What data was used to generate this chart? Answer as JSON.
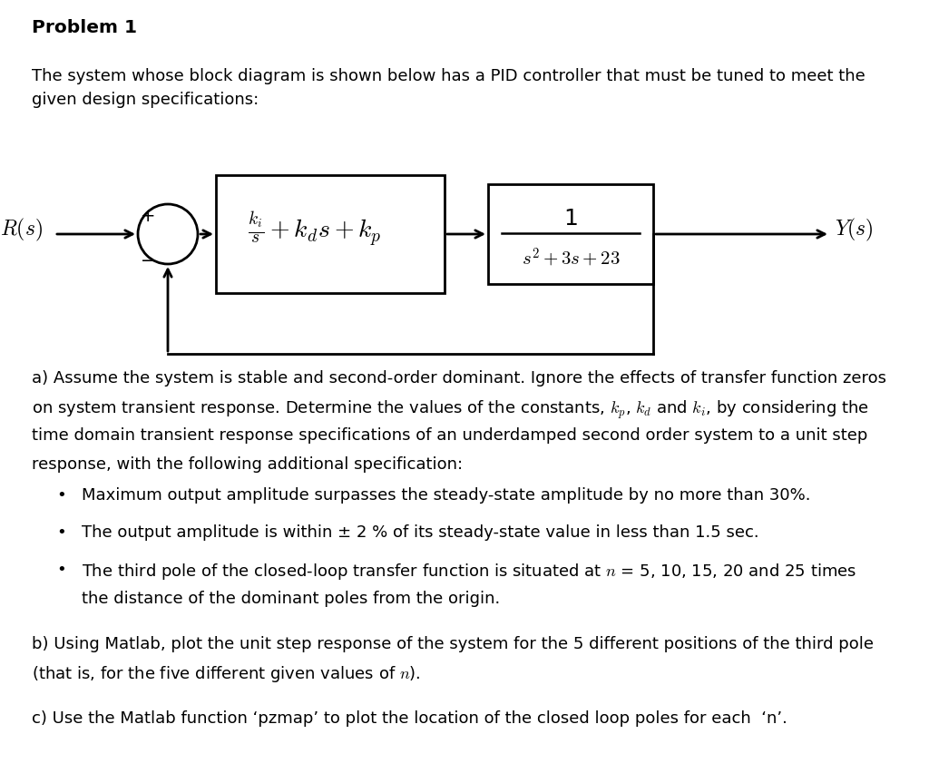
{
  "title": "Problem 1",
  "background_color": "#ffffff",
  "text_color": "#000000",
  "intro_text": "The system whose block diagram is shown below has a PID controller that must be tuned to meet the\ngiven design specifications:",
  "section_a_text_line1": "a) Assume the system is stable and second-order dominant. Ignore the effects of transfer function zeros",
  "section_a_text_line2": "on system transient response. Determine the values of the constants, $k_p$, $k_d$ and $k_i$, by considering the",
  "section_a_text_line3": "time domain transient response specifications of an underdamped second order system to a unit step",
  "section_a_text_line4": "response, with the following additional specification:",
  "bullet1": "Maximum output amplitude surpasses the steady-state amplitude by no more than 30%.",
  "bullet2": "The output amplitude is within ± 2 % of its steady-state value in less than 1.5 sec.",
  "bullet3_line1": "The third pole of the closed-loop transfer function is situated at $n$ = 5, 10, 15, 20 and 25 times",
  "bullet3_line2": "the distance of the dominant poles from the origin.",
  "section_b_line1": "b) Using Matlab, plot the unit step response of the system for the 5 different positions of the third pole",
  "section_b_line2": "(that is, for the five different given values of $n$).",
  "section_c": "c) Use the Matlab function ‘pzmap’ to plot the location of the closed loop poles for each  ‘n’.",
  "fig_width": 10.24,
  "fig_height": 8.63,
  "dpi": 100
}
